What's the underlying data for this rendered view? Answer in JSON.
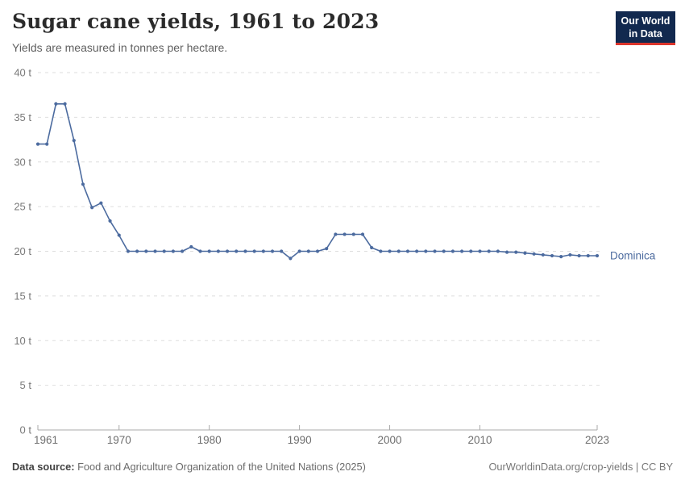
{
  "header": {
    "title": "Sugar cane yields, 1961 to 2023",
    "subtitle": "Yields are measured in tonnes per hectare.",
    "logo": {
      "line1": "Our World",
      "line2": "in Data"
    }
  },
  "colors": {
    "series_blue": "#4C6B9F",
    "logo_navy": "#12294F",
    "logo_red": "#DC352C",
    "gridline": "#DEDEDE",
    "axis_line": "#A9A9A9",
    "axis_text": "#6E6E6E"
  },
  "footer": {
    "source_label": "Data source:",
    "source_text": " Food and Agriculture Organization of the United Nations (2025)",
    "attribution": "OurWorldinData.org/crop-yields | CC BY"
  },
  "chart_data": {
    "type": "line",
    "title": "Sugar cane yields, 1961 to 2023",
    "subtitle": "Yields are measured in tonnes per hectare.",
    "xlabel": "",
    "ylabel": "tonnes per hectare",
    "xlim": [
      1961,
      2023
    ],
    "ylim": [
      0,
      40
    ],
    "grid": "horizontal-dashed",
    "legend_position": "end-of-line-label",
    "x_ticks": [
      {
        "year": 1961,
        "label": "1961"
      },
      {
        "year": 1970,
        "label": "1970"
      },
      {
        "year": 1980,
        "label": "1980"
      },
      {
        "year": 1990,
        "label": "1990"
      },
      {
        "year": 2000,
        "label": "2000"
      },
      {
        "year": 2010,
        "label": "2010"
      },
      {
        "year": 2023,
        "label": "2023"
      }
    ],
    "y_ticks": [
      {
        "value": 0,
        "label": "0 t"
      },
      {
        "value": 5,
        "label": "5 t"
      },
      {
        "value": 10,
        "label": "10 t"
      },
      {
        "value": 15,
        "label": "15 t"
      },
      {
        "value": 20,
        "label": "20 t"
      },
      {
        "value": 25,
        "label": "25 t"
      },
      {
        "value": 30,
        "label": "30 t"
      },
      {
        "value": 35,
        "label": "35 t"
      },
      {
        "value": 40,
        "label": "40 t"
      }
    ],
    "series": [
      {
        "name": "Dominica",
        "color": "#4C6B9F",
        "years": [
          1961,
          1962,
          1963,
          1964,
          1965,
          1966,
          1967,
          1968,
          1969,
          1970,
          1971,
          1972,
          1973,
          1974,
          1975,
          1976,
          1977,
          1978,
          1979,
          1980,
          1981,
          1982,
          1983,
          1984,
          1985,
          1986,
          1987,
          1988,
          1989,
          1990,
          1991,
          1992,
          1993,
          1994,
          1995,
          1996,
          1997,
          1998,
          1999,
          2000,
          2001,
          2002,
          2003,
          2004,
          2005,
          2006,
          2007,
          2008,
          2009,
          2010,
          2011,
          2012,
          2013,
          2014,
          2015,
          2016,
          2017,
          2018,
          2019,
          2020,
          2021,
          2022,
          2023
        ],
        "values": [
          32,
          32,
          36.5,
          36.5,
          32.4,
          27.5,
          24.9,
          25.4,
          23.4,
          21.8,
          20,
          20,
          20,
          20,
          20,
          20,
          20,
          20.5,
          20,
          20,
          20,
          20,
          20,
          20,
          20,
          20,
          20,
          20,
          19.2,
          20,
          20,
          20,
          20.3,
          21.9,
          21.9,
          21.9,
          21.9,
          20.4,
          20,
          20,
          20,
          20,
          20,
          20,
          20,
          20,
          20,
          20,
          20,
          20,
          20,
          20,
          19.9,
          19.9,
          19.8,
          19.7,
          19.6,
          19.5,
          19.4,
          19.6,
          19.5,
          19.5,
          19.5
        ]
      }
    ]
  }
}
